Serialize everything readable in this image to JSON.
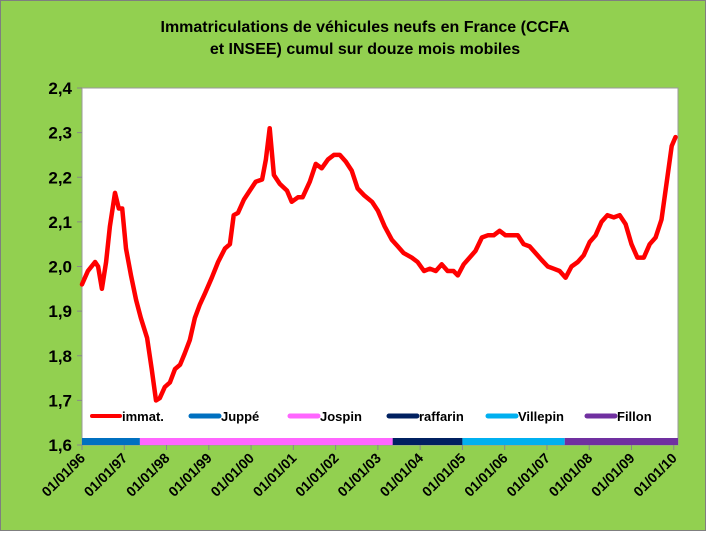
{
  "chart_data": {
    "type": "line",
    "title": [
      "Immatriculations  de véhicules neufs  en France (CCFA",
      "et INSEE) cumul sur douze mois mobiles"
    ],
    "xlim": [
      1996,
      2010.1
    ],
    "xticks": [
      {
        "value": 1996,
        "label": "01/01/96"
      },
      {
        "value": 1997,
        "label": "01/01/97"
      },
      {
        "value": 1998,
        "label": "01/01/98"
      },
      {
        "value": 1999,
        "label": "01/01/99"
      },
      {
        "value": 2000,
        "label": "01/01/00"
      },
      {
        "value": 2001,
        "label": "01/01/01"
      },
      {
        "value": 2002,
        "label": "01/01/02"
      },
      {
        "value": 2003,
        "label": "01/01/03"
      },
      {
        "value": 2004,
        "label": "01/01/04"
      },
      {
        "value": 2005,
        "label": "01/01/05"
      },
      {
        "value": 2006,
        "label": "01/01/06"
      },
      {
        "value": 2007,
        "label": "01/01/07"
      },
      {
        "value": 2008,
        "label": "01/01/08"
      },
      {
        "value": 2009,
        "label": "01/01/09"
      },
      {
        "value": 2010,
        "label": "01/01/10"
      }
    ],
    "ylim": [
      1.6,
      2.4
    ],
    "yticks": [
      {
        "value": 1.6,
        "label": "1,6"
      },
      {
        "value": 1.7,
        "label": "1,7"
      },
      {
        "value": 1.8,
        "label": "1,8"
      },
      {
        "value": 1.9,
        "label": "1,9"
      },
      {
        "value": 2.0,
        "label": "2,0"
      },
      {
        "value": 2.1,
        "label": "2,1"
      },
      {
        "value": 2.2,
        "label": "2,2"
      },
      {
        "value": 2.3,
        "label": "2,3"
      },
      {
        "value": 2.4,
        "label": "2,4"
      }
    ],
    "grid": false,
    "series": [
      {
        "name": "immat.",
        "color": "#ff0000",
        "style": "line",
        "x": [
          1996.0,
          1996.14,
          1996.31,
          1996.38,
          1996.47,
          1996.57,
          1996.66,
          1996.78,
          1996.87,
          1996.95,
          1997.04,
          1997.16,
          1997.28,
          1997.39,
          1997.54,
          1997.65,
          1997.75,
          1997.84,
          1997.96,
          1998.08,
          1998.2,
          1998.32,
          1998.43,
          1998.55,
          1998.67,
          1998.79,
          1998.91,
          1999.07,
          1999.22,
          1999.38,
          1999.5,
          1999.59,
          1999.69,
          1999.83,
          1999.97,
          2000.11,
          2000.26,
          2000.35,
          2000.44,
          2000.54,
          2000.68,
          2000.85,
          2000.96,
          2001.11,
          2001.22,
          2001.39,
          2001.53,
          2001.67,
          2001.82,
          2001.96,
          2002.1,
          2002.24,
          2002.38,
          2002.52,
          2002.67,
          2002.86,
          2003.0,
          2003.16,
          2003.33,
          2003.47,
          2003.61,
          2003.8,
          2003.94,
          2004.09,
          2004.23,
          2004.37,
          2004.51,
          2004.65,
          2004.79,
          2004.89,
          2005.03,
          2005.17,
          2005.31,
          2005.46,
          2005.6,
          2005.74,
          2005.88,
          2006.02,
          2006.17,
          2006.31,
          2006.45,
          2006.59,
          2006.73,
          2006.87,
          2007.02,
          2007.16,
          2007.3,
          2007.44,
          2007.58,
          2007.73,
          2007.87,
          2008.01,
          2008.15,
          2008.29,
          2008.43,
          2008.58,
          2008.72,
          2008.86,
          2009.0,
          2009.14,
          2009.29,
          2009.43,
          2009.57,
          2009.71,
          2009.85,
          2009.95,
          2010.04
        ],
        "values": [
          1.96,
          1.99,
          2.01,
          2.0,
          1.95,
          2.01,
          2.09,
          2.165,
          2.13,
          2.13,
          2.04,
          1.98,
          1.925,
          1.885,
          1.84,
          1.77,
          1.7,
          1.705,
          1.73,
          1.74,
          1.77,
          1.78,
          1.805,
          1.835,
          1.885,
          1.915,
          1.94,
          1.975,
          2.01,
          2.04,
          2.05,
          2.115,
          2.12,
          2.15,
          2.17,
          2.19,
          2.195,
          2.24,
          2.31,
          2.205,
          2.185,
          2.17,
          2.145,
          2.155,
          2.155,
          2.19,
          2.23,
          2.22,
          2.24,
          2.25,
          2.25,
          2.235,
          2.215,
          2.175,
          2.16,
          2.145,
          2.125,
          2.09,
          2.06,
          2.045,
          2.03,
          2.02,
          2.01,
          1.99,
          1.995,
          1.99,
          2.005,
          1.99,
          1.99,
          1.98,
          2.005,
          2.02,
          2.035,
          2.065,
          2.07,
          2.07,
          2.08,
          2.07,
          2.07,
          2.07,
          2.05,
          2.045,
          2.03,
          2.015,
          2.0,
          1.995,
          1.99,
          1.975,
          2.0,
          2.01,
          2.025,
          2.055,
          2.07,
          2.1,
          2.115,
          2.11,
          2.115,
          2.095,
          2.05,
          2.02,
          2.02,
          2.05,
          2.065,
          2.105,
          2.2,
          2.27,
          2.29
        ]
      },
      {
        "name": "Juppé",
        "color": "#0070c0",
        "style": "band",
        "x": [
          1996,
          1997.37
        ],
        "values": [
          1.6,
          1.6
        ]
      },
      {
        "name": "Jospin",
        "color": "#ff66ff",
        "style": "band",
        "x": [
          1997.37,
          2003.35
        ],
        "values": [
          1.6,
          1.6
        ]
      },
      {
        "name": "raffarin",
        "color": "#002060",
        "style": "band",
        "x": [
          2003.35,
          2005.0
        ],
        "values": [
          1.6,
          1.6
        ]
      },
      {
        "name": "Villepin",
        "color": "#00b0f0",
        "style": "band",
        "x": [
          2005.0,
          2007.42
        ],
        "values": [
          1.6,
          1.6
        ]
      },
      {
        "name": "Fillon",
        "color": "#7030a0",
        "style": "band",
        "x": [
          2007.42,
          2010.1
        ],
        "values": [
          1.6,
          1.6
        ]
      }
    ]
  }
}
